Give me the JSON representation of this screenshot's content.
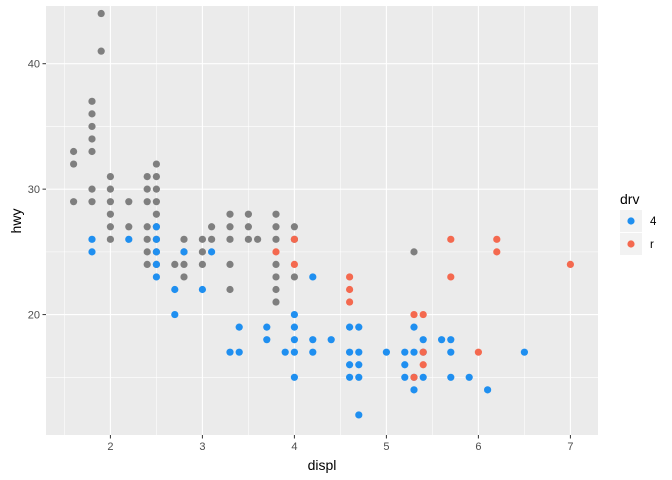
{
  "chart_data": {
    "type": "scatter",
    "title": "",
    "xlabel": "displ",
    "ylabel": "hwy",
    "xlim": [
      1.3,
      7.3
    ],
    "ylim": [
      10.4,
      44.6
    ],
    "xticks": [
      2,
      3,
      4,
      5,
      6,
      7
    ],
    "yticks": [
      20,
      30,
      40
    ],
    "grid": true,
    "legend": {
      "title": "drv",
      "placement": "right",
      "entries": [
        {
          "label": "4",
          "color": "#1f8ff0"
        },
        {
          "label": "r",
          "color": "#f4694f"
        }
      ]
    },
    "colors": {
      "panel_background": "#ebebeb",
      "grid": "#ffffff",
      "unlabeled_series": "#7f7f7f"
    },
    "series": [
      {
        "color": "#7f7f7f",
        "points": [
          [
            1.6,
            33
          ],
          [
            1.6,
            32
          ],
          [
            1.6,
            29
          ],
          [
            1.8,
            37
          ],
          [
            1.8,
            36
          ],
          [
            1.8,
            35
          ],
          [
            1.8,
            34
          ],
          [
            1.8,
            33
          ],
          [
            1.8,
            30
          ],
          [
            1.8,
            29
          ],
          [
            1.9,
            44
          ],
          [
            1.9,
            41
          ],
          [
            2.0,
            31
          ],
          [
            2.0,
            30
          ],
          [
            2.0,
            29
          ],
          [
            2.0,
            28
          ],
          [
            2.0,
            27
          ],
          [
            2.0,
            26
          ],
          [
            2.2,
            29
          ],
          [
            2.2,
            27
          ],
          [
            2.4,
            31
          ],
          [
            2.4,
            30
          ],
          [
            2.4,
            29
          ],
          [
            2.4,
            27
          ],
          [
            2.4,
            26
          ],
          [
            2.4,
            25
          ],
          [
            2.4,
            24
          ],
          [
            2.5,
            32
          ],
          [
            2.5,
            31
          ],
          [
            2.5,
            30
          ],
          [
            2.5,
            29
          ],
          [
            2.5,
            28
          ],
          [
            2.5,
            27
          ],
          [
            2.5,
            26
          ],
          [
            2.5,
            25
          ],
          [
            2.5,
            24
          ],
          [
            2.7,
            24
          ],
          [
            2.8,
            26
          ],
          [
            2.8,
            25
          ],
          [
            2.8,
            24
          ],
          [
            2.8,
            23
          ],
          [
            3.0,
            26
          ],
          [
            3.0,
            25
          ],
          [
            3.0,
            24
          ],
          [
            3.1,
            27
          ],
          [
            3.1,
            26
          ],
          [
            3.3,
            28
          ],
          [
            3.3,
            27
          ],
          [
            3.3,
            26
          ],
          [
            3.3,
            24
          ],
          [
            3.3,
            22
          ],
          [
            3.5,
            28
          ],
          [
            3.5,
            27
          ],
          [
            3.5,
            26
          ],
          [
            3.6,
            26
          ],
          [
            3.8,
            28
          ],
          [
            3.8,
            27
          ],
          [
            3.8,
            26
          ],
          [
            3.8,
            24
          ],
          [
            3.8,
            23
          ],
          [
            3.8,
            22
          ],
          [
            3.8,
            21
          ],
          [
            4.0,
            27
          ],
          [
            4.0,
            26
          ],
          [
            4.0,
            23
          ],
          [
            5.3,
            25
          ]
        ]
      },
      {
        "name": "4",
        "color": "#1f8ff0",
        "points": [
          [
            1.8,
            26
          ],
          [
            1.8,
            25
          ],
          [
            2.2,
            26
          ],
          [
            2.5,
            27
          ],
          [
            2.5,
            26
          ],
          [
            2.5,
            25
          ],
          [
            2.5,
            24
          ],
          [
            2.5,
            23
          ],
          [
            2.7,
            22
          ],
          [
            2.7,
            20
          ],
          [
            2.8,
            25
          ],
          [
            3.0,
            22
          ],
          [
            3.1,
            25
          ],
          [
            3.3,
            17
          ],
          [
            3.4,
            19
          ],
          [
            3.4,
            17
          ],
          [
            3.7,
            19
          ],
          [
            3.7,
            18
          ],
          [
            3.9,
            17
          ],
          [
            4.0,
            20
          ],
          [
            4.0,
            19
          ],
          [
            4.0,
            18
          ],
          [
            4.0,
            17
          ],
          [
            4.0,
            15
          ],
          [
            4.2,
            23
          ],
          [
            4.2,
            18
          ],
          [
            4.2,
            17
          ],
          [
            4.4,
            18
          ],
          [
            4.6,
            19
          ],
          [
            4.6,
            17
          ],
          [
            4.6,
            16
          ],
          [
            4.6,
            15
          ],
          [
            4.7,
            19
          ],
          [
            4.7,
            17
          ],
          [
            4.7,
            16
          ],
          [
            4.7,
            15
          ],
          [
            4.7,
            12
          ],
          [
            5.0,
            17
          ],
          [
            5.2,
            17
          ],
          [
            5.2,
            16
          ],
          [
            5.2,
            15
          ],
          [
            5.3,
            19
          ],
          [
            5.3,
            17
          ],
          [
            5.3,
            15
          ],
          [
            5.3,
            14
          ],
          [
            5.4,
            18
          ],
          [
            5.4,
            17
          ],
          [
            5.4,
            15
          ],
          [
            5.6,
            18
          ],
          [
            5.7,
            18
          ],
          [
            5.7,
            17
          ],
          [
            5.7,
            15
          ],
          [
            5.9,
            15
          ],
          [
            6.1,
            14
          ],
          [
            6.5,
            17
          ]
        ]
      },
      {
        "name": "r",
        "color": "#f4694f",
        "points": [
          [
            3.8,
            25
          ],
          [
            4.0,
            26
          ],
          [
            4.0,
            24
          ],
          [
            4.6,
            23
          ],
          [
            4.6,
            22
          ],
          [
            4.6,
            21
          ],
          [
            5.3,
            20
          ],
          [
            5.3,
            15
          ],
          [
            5.4,
            20
          ],
          [
            5.4,
            17
          ],
          [
            5.4,
            16
          ],
          [
            5.7,
            26
          ],
          [
            5.7,
            23
          ],
          [
            6.0,
            17
          ],
          [
            6.2,
            26
          ],
          [
            6.2,
            25
          ],
          [
            7.0,
            24
          ]
        ]
      }
    ]
  }
}
